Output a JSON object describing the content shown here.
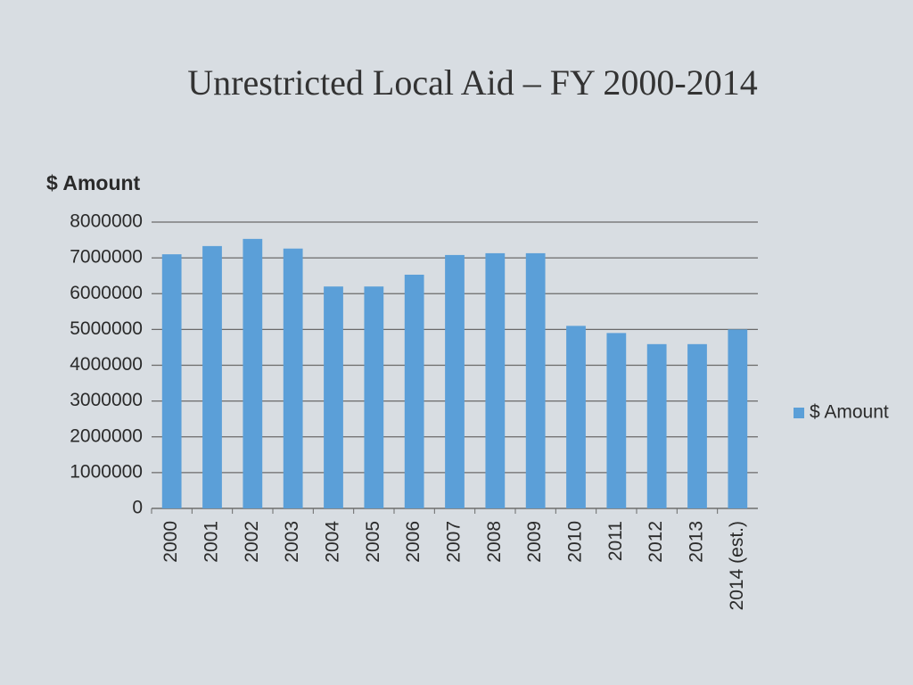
{
  "chart_data": {
    "type": "bar",
    "title": "Unrestricted Local Aid – FY 2000-2014",
    "y_label": "$ Amount",
    "categories": [
      "2000",
      "2001",
      "2002",
      "2003",
      "2004",
      "2005",
      "2006",
      "2007",
      "2008",
      "2009",
      "2010",
      "2011",
      "2012",
      "2013",
      "2014 (est.)"
    ],
    "series": [
      {
        "name": "$ Amount",
        "color": "#5b9fd8",
        "values": [
          7100000,
          7330000,
          7530000,
          7260000,
          6200000,
          6200000,
          6530000,
          7080000,
          7130000,
          7130000,
          5100000,
          4900000,
          4590000,
          4590000,
          5000000
        ]
      }
    ],
    "ylim": [
      0,
      8000000
    ],
    "yticks": [
      0,
      1000000,
      2000000,
      3000000,
      4000000,
      5000000,
      6000000,
      7000000,
      8000000
    ],
    "grid": true,
    "legend": "right"
  }
}
